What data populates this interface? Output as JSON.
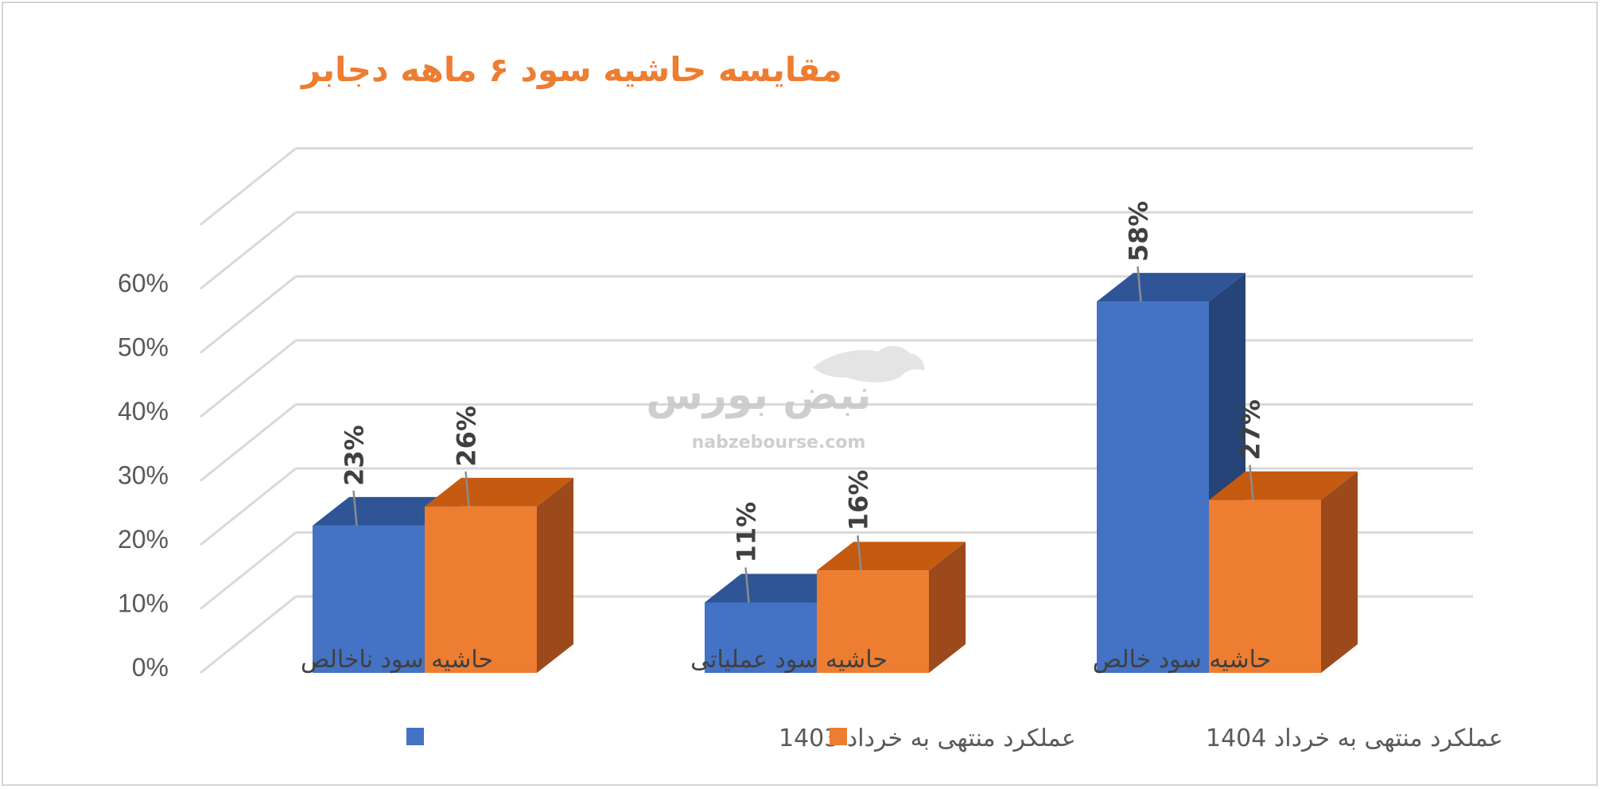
{
  "chart_data": {
    "type": "bar",
    "title": "مقایسه حاشیه سود ۶ ماهه دجابر",
    "categories": [
      "حاشیه سود ناخالص",
      "حاشیه سود عملیاتی",
      "حاشیه سود خالص"
    ],
    "series": [
      {
        "name": "عملکرد منتهی به خرداد 1403",
        "values": [
          23,
          11,
          58
        ],
        "labels": [
          "23%",
          "11%",
          "58%"
        ]
      },
      {
        "name": "عملکرد منتهی به خرداد 1404",
        "values": [
          26,
          16,
          27
        ],
        "labels": [
          "26%",
          "16%",
          "27%"
        ]
      }
    ],
    "yticks": [
      "0%",
      "10%",
      "20%",
      "30%",
      "40%",
      "50%",
      "60%"
    ],
    "ylim": [
      0,
      70
    ],
    "grid": true,
    "legend_position": "bottom",
    "style": "3d-clustered-column",
    "colors": {
      "series1": "#4472c4",
      "series2": "#ed7d31",
      "title": "#ed7d31"
    }
  },
  "watermark": {
    "text": "نبض بورس",
    "url": "nabzebourse.com"
  }
}
